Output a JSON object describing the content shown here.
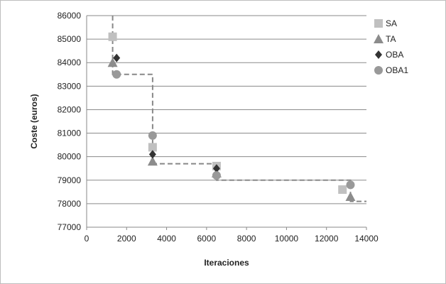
{
  "chart_data": {
    "type": "scatter",
    "title": "",
    "xlabel": "Iteraciones",
    "ylabel": "Coste (euros)",
    "xlim": [
      0,
      14000
    ],
    "ylim": [
      77000,
      86000
    ],
    "x_ticks": [
      0,
      2000,
      4000,
      6000,
      8000,
      10000,
      12000,
      14000
    ],
    "y_ticks": [
      77000,
      78000,
      79000,
      80000,
      81000,
      82000,
      83000,
      84000,
      85000,
      86000
    ],
    "grid": "horizontal",
    "legend_position": "right",
    "series": [
      {
        "name": "SA",
        "marker": "square",
        "color": "#c0c0c0",
        "points": [
          [
            1300,
            85100
          ],
          [
            3300,
            80400
          ],
          [
            6500,
            79600
          ],
          [
            12800,
            78600
          ]
        ]
      },
      {
        "name": "TA",
        "marker": "triangle",
        "color": "#8c8c8c",
        "points": [
          [
            1300,
            84000
          ],
          [
            3300,
            79800
          ],
          [
            6500,
            79300
          ],
          [
            13200,
            78300
          ]
        ]
      },
      {
        "name": "OBA",
        "marker": "diamond",
        "color": "#333333",
        "points": [
          [
            1500,
            84200
          ],
          [
            3300,
            80100
          ],
          [
            6500,
            79500
          ],
          [
            13200,
            78800
          ]
        ]
      },
      {
        "name": "OBA1",
        "marker": "circle",
        "color": "#999999",
        "points": [
          [
            1500,
            83500
          ],
          [
            3300,
            80900
          ],
          [
            6500,
            79200
          ],
          [
            13200,
            78800
          ]
        ]
      }
    ],
    "step_line": {
      "color": "#888888",
      "points": [
        [
          1300,
          86000
        ],
        [
          1300,
          83500
        ],
        [
          3300,
          83500
        ],
        [
          3300,
          79700
        ],
        [
          6500,
          79700
        ],
        [
          6500,
          79000
        ],
        [
          13200,
          79000
        ],
        [
          13200,
          78100
        ],
        [
          14000,
          78100
        ]
      ]
    }
  }
}
